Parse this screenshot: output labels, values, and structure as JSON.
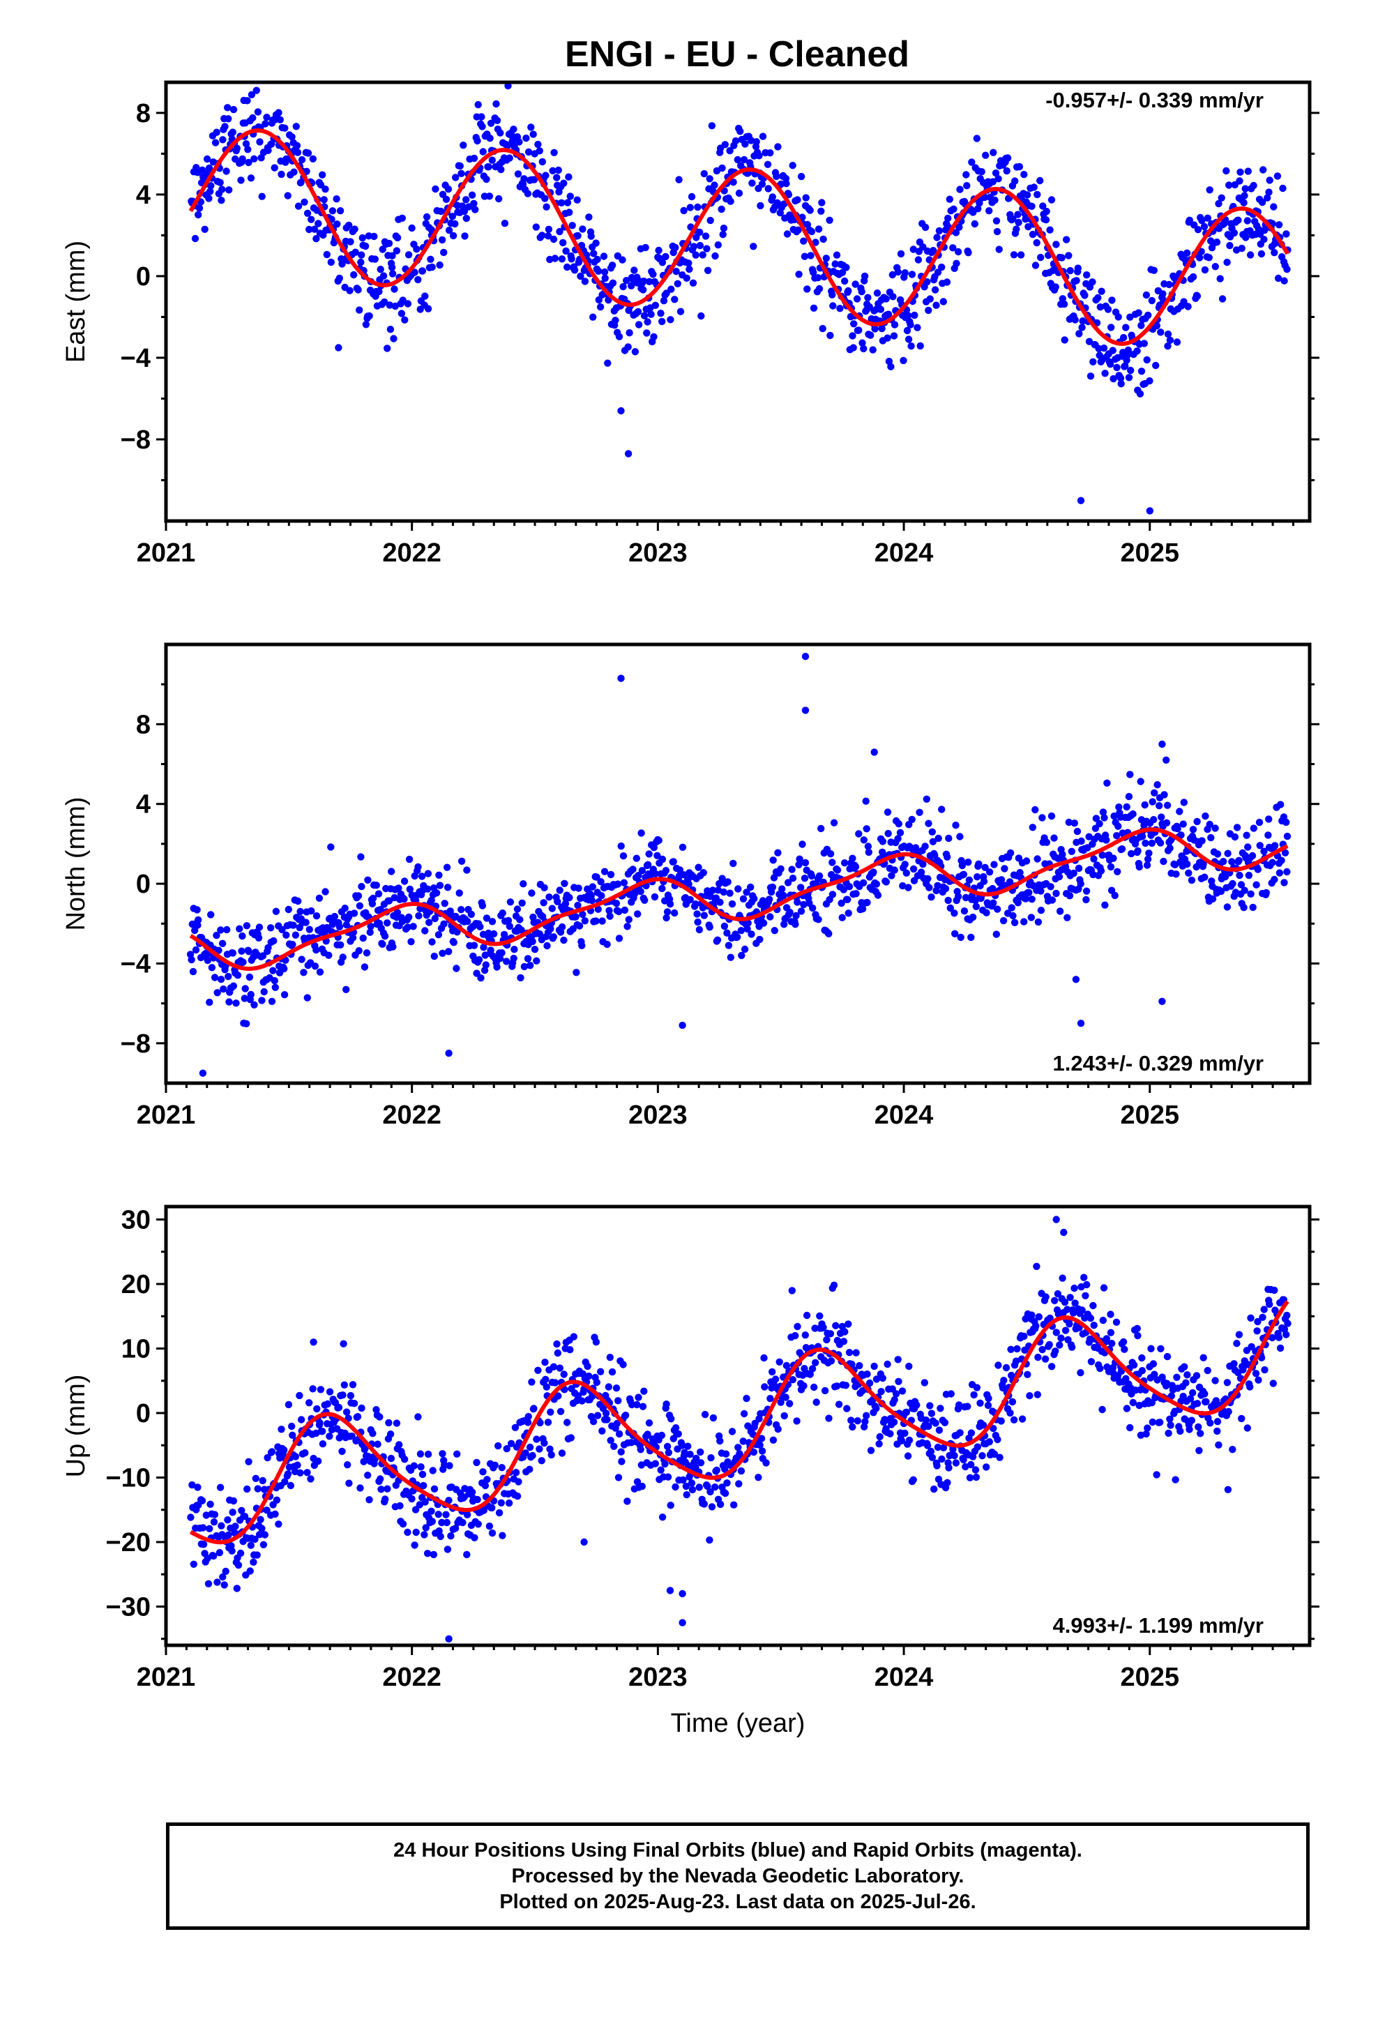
{
  "title": "ENGI  - EU - Cleaned",
  "footer": {
    "line1": "24 Hour Positions Using Final Orbits (blue) and Rapid Orbits (magenta).",
    "line2": "Processed by the Nevada Geodetic Laboratory.",
    "line3": "Plotted on 2025-Aug-23. Last data on 2025-Jul-26."
  },
  "colors": {
    "points": "#0000ff",
    "fit": "#ff0000",
    "axis": "#000000"
  },
  "chart_data": [
    {
      "type": "scatter",
      "ylabel": "East (mm)",
      "xlabel": "",
      "rate_label": "-0.957+/- 0.339 mm/yr",
      "rate_position": "top-right",
      "xlim": [
        2021.0,
        2025.65
      ],
      "ylim": [
        -12,
        9.5
      ],
      "xticks": [
        2021,
        2022,
        2023,
        2024,
        2025
      ],
      "yticks": [
        -8,
        -4,
        0,
        4,
        8
      ],
      "data_range": [
        2021.1,
        2025.56
      ],
      "fit": {
        "rate": -0.957,
        "offset": 1.75,
        "ref_year": 2023.3,
        "annual_amplitude": 3.55,
        "annual_peak_fraction": 0.38,
        "semiannual_amplitude": 0.0,
        "semiannual_peak_fraction": 0.0
      },
      "scatter_std": 1.25,
      "outliers": [
        [
          2021.92,
          1.0
        ],
        [
          2022.08,
          2.0
        ],
        [
          2022.85,
          -6.6
        ],
        [
          2022.88,
          -8.7
        ],
        [
          2024.72,
          -11.0
        ],
        [
          2025.0,
          -11.5
        ]
      ]
    },
    {
      "type": "scatter",
      "ylabel": "North (mm)",
      "xlabel": "",
      "rate_label": "1.243+/- 0.329 mm/yr",
      "rate_position": "bottom-right",
      "xlim": [
        2021.0,
        2025.65
      ],
      "ylim": [
        -10,
        12
      ],
      "xticks": [
        2021,
        2022,
        2023,
        2024,
        2025
      ],
      "yticks": [
        -8,
        -4,
        0,
        4,
        8
      ],
      "data_range": [
        2021.1,
        2025.56
      ],
      "fit": {
        "rate": 1.243,
        "offset": -0.6,
        "ref_year": 2023.3,
        "annual_amplitude": 1.05,
        "annual_peak_fraction": 0.92,
        "semiannual_amplitude": 0.35,
        "semiannual_peak_fraction": 0.05
      },
      "scatter_std": 1.1,
      "outliers": [
        [
          2022.85,
          10.3
        ],
        [
          2023.6,
          11.4
        ],
        [
          2023.6,
          8.7
        ],
        [
          2023.88,
          6.6
        ],
        [
          2024.7,
          -4.8
        ],
        [
          2024.72,
          -7.0
        ],
        [
          2025.05,
          -5.9
        ],
        [
          2025.05,
          7.0
        ],
        [
          2021.15,
          -9.5
        ],
        [
          2022.15,
          -8.5
        ],
        [
          2023.1,
          -7.1
        ]
      ]
    },
    {
      "type": "scatter",
      "ylabel": "Up (mm)",
      "xlabel": "Time (year)",
      "rate_label": "4.993+/- 1.199 mm/yr",
      "rate_position": "bottom-right",
      "xlim": [
        2021.0,
        2025.65
      ],
      "ylim": [
        -36,
        32
      ],
      "xticks": [
        2021,
        2022,
        2023,
        2024,
        2025
      ],
      "yticks": [
        -30,
        -20,
        -10,
        0,
        10,
        20,
        30
      ],
      "data_range": [
        2021.1,
        2025.56
      ],
      "fit": {
        "rate": 4.993,
        "offset": -1.5,
        "ref_year": 2023.3,
        "annual_amplitude": 8.5,
        "annual_peak_fraction": 0.68,
        "semiannual_amplitude": 1.5,
        "semiannual_peak_fraction": 0.1
      },
      "scatter_std": 4.0,
      "outliers": [
        [
          2022.15,
          -35.0
        ],
        [
          2023.05,
          -27.5
        ],
        [
          2023.1,
          -28.0
        ],
        [
          2023.1,
          -32.5
        ],
        [
          2024.62,
          30.0
        ],
        [
          2024.65,
          28.0
        ],
        [
          2022.7,
          -20.0
        ],
        [
          2021.6,
          11.0
        ]
      ]
    }
  ]
}
